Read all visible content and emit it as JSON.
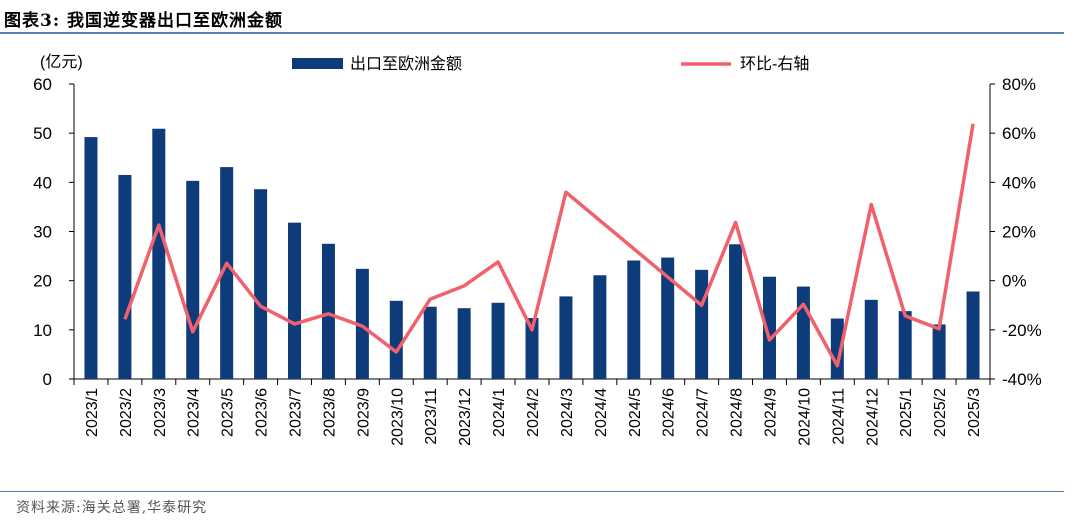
{
  "figure": {
    "title": "图表3:  我国逆变器出口至欧洲金额",
    "source": "资料来源:海关总署,华泰研究"
  },
  "chart_data": {
    "type": "bar",
    "categories": [
      "2023/1",
      "2023/2",
      "2023/3",
      "2023/4",
      "2023/5",
      "2023/6",
      "2023/7",
      "2023/8",
      "2023/9",
      "2023/10",
      "2023/11",
      "2023/12",
      "2024/1",
      "2024/2",
      "2024/3",
      "2024/4",
      "2024/5",
      "2024/6",
      "2024/7",
      "2024/8",
      "2024/9",
      "2024/10",
      "2024/11",
      "2024/12",
      "2025/1",
      "2025/2",
      "2025/3"
    ],
    "series": [
      {
        "name": "出口至欧洲金额",
        "type": "bar",
        "axis": "left",
        "color": "#0e3b7a",
        "values": [
          49.2,
          41.5,
          50.9,
          40.3,
          43.1,
          38.6,
          31.8,
          27.5,
          22.4,
          15.9,
          14.7,
          14.4,
          15.5,
          12.4,
          16.8,
          21.1,
          24.1,
          24.7,
          22.2,
          27.4,
          20.8,
          18.8,
          12.3,
          16.1,
          13.8,
          11.1,
          17.8
        ]
      },
      {
        "name": "环比-右轴",
        "type": "line",
        "axis": "right",
        "color": "#f0616b",
        "values": [
          null,
          -15.7,
          22.6,
          -20.8,
          7.1,
          -10.4,
          -17.6,
          -13.5,
          -18.5,
          -29,
          -7.5,
          -2.1,
          7.6,
          -20,
          36,
          null,
          null,
          null,
          -10,
          23.7,
          -24.1,
          -9.6,
          -34.6,
          31,
          -14.3,
          -19.6,
          63.8
        ]
      }
    ],
    "ylabel_left": "(亿元)",
    "ylim_left": [
      0,
      60
    ],
    "yticks_left": [
      "0",
      "10",
      "20",
      "30",
      "40",
      "50",
      "60"
    ],
    "ylim_right": [
      -40,
      80
    ],
    "yticks_right": [
      "-40%",
      "-20%",
      "0%",
      "20%",
      "40%",
      "60%",
      "80%"
    ],
    "legend_position": "top",
    "grid": false
  }
}
